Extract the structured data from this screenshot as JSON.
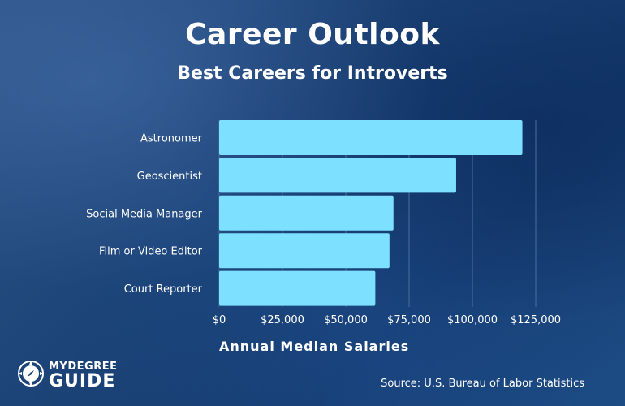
{
  "chart_data": {
    "type": "bar",
    "orientation": "horizontal",
    "title": "Career Outlook",
    "subtitle": "Best Careers for Introverts",
    "categories": [
      "Astronomer",
      "Geoscientist",
      "Social Media Manager",
      "Film or Video Editor",
      "Court Reporter"
    ],
    "values": [
      119730,
      93580,
      68830,
      67250,
      61660
    ],
    "xlabel": "Annual Median Salaries",
    "xlim": [
      0,
      125000
    ],
    "ticks": [
      0,
      25000,
      50000,
      75000,
      100000,
      125000
    ],
    "tick_labels": [
      "$0",
      "$25,000",
      "$50,000",
      "$75,000",
      "$100,000",
      "$125,000"
    ],
    "grid": true,
    "bar_color": "#7ee0ff",
    "grid_color": "#4a6f9e"
  },
  "source": "Source: U.S. Bureau of Labor Statistics",
  "logo": {
    "top": "MYDEGREE",
    "bottom": "GUIDE",
    "icon": "compass-icon"
  }
}
